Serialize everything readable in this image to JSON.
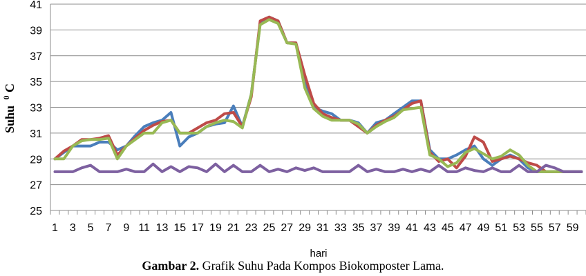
{
  "caption": {
    "lead": "Gambar 2.",
    "text": " Grafik Suhu Pada Kompos Biokomposter Lama."
  },
  "chart_data": {
    "type": "line",
    "title": "",
    "xlabel": "hari",
    "ylabel": "Suhu",
    "ylabel_superscript": "0",
    "ylabel_unit": "C",
    "ylim": [
      25,
      41
    ],
    "yticks": [
      25,
      27,
      29,
      31,
      33,
      35,
      37,
      39,
      41
    ],
    "xticks": [
      1,
      3,
      5,
      7,
      9,
      11,
      13,
      15,
      17,
      19,
      21,
      23,
      25,
      27,
      29,
      31,
      33,
      35,
      37,
      39,
      41,
      43,
      45,
      47,
      49,
      51,
      53,
      55,
      57,
      59
    ],
    "grid": "horizontal",
    "legend": "none",
    "x": [
      1,
      2,
      3,
      4,
      5,
      6,
      7,
      8,
      9,
      10,
      11,
      12,
      13,
      14,
      15,
      16,
      17,
      18,
      19,
      20,
      21,
      22,
      23,
      24,
      25,
      26,
      27,
      28,
      29,
      30,
      31,
      32,
      33,
      34,
      35,
      36,
      37,
      38,
      39,
      40,
      41,
      42,
      43,
      44,
      45,
      46,
      47,
      48,
      49,
      50,
      51,
      52,
      53,
      54,
      55,
      56,
      57,
      58,
      59,
      60
    ],
    "series": [
      {
        "color": "#4a7ebb",
        "values": [
          29.0,
          29.5,
          30.0,
          30.0,
          30.0,
          30.3,
          30.3,
          29.7,
          30.0,
          30.8,
          31.5,
          31.8,
          32.0,
          32.6,
          30.0,
          30.7,
          31.0,
          31.5,
          31.7,
          31.8,
          33.1,
          31.5,
          34.0,
          39.5,
          40.0,
          39.7,
          38.0,
          38.0,
          35.0,
          33.0,
          32.7,
          32.5,
          32.0,
          32.0,
          31.8,
          31.0,
          31.8,
          32.0,
          32.5,
          33.0,
          33.5,
          33.5,
          29.7,
          29.0,
          29.0,
          29.3,
          29.7,
          30.0,
          29.0,
          28.5,
          29.0,
          29.3,
          29.0,
          28.3,
          28.0,
          28.0,
          28.0,
          28.0,
          28.0,
          28.0
        ]
      },
      {
        "color": "#be4b48",
        "values": [
          29.0,
          29.6,
          30.0,
          30.5,
          30.5,
          30.6,
          30.8,
          29.3,
          30.0,
          30.6,
          31.2,
          31.6,
          31.9,
          32.0,
          31.0,
          31.0,
          31.4,
          31.8,
          32.0,
          32.5,
          32.6,
          31.5,
          33.8,
          39.7,
          40.0,
          39.7,
          38.0,
          38.0,
          35.5,
          33.3,
          32.5,
          32.2,
          32.0,
          32.0,
          31.5,
          31.0,
          31.6,
          32.0,
          32.3,
          32.8,
          33.3,
          33.5,
          29.5,
          28.8,
          29.0,
          28.3,
          29.2,
          30.7,
          30.3,
          28.8,
          29.0,
          29.2,
          29.0,
          28.7,
          28.5,
          28.0,
          28.0,
          28.0,
          28.0,
          28.0
        ]
      },
      {
        "color": "#98b954",
        "values": [
          29.0,
          29.0,
          30.0,
          30.4,
          30.5,
          30.5,
          30.6,
          29.0,
          30.0,
          30.5,
          31.0,
          31.0,
          31.8,
          32.0,
          31.0,
          31.0,
          31.0,
          31.5,
          31.8,
          32.0,
          31.9,
          31.4,
          34.0,
          39.4,
          39.8,
          39.5,
          38.0,
          37.9,
          34.5,
          32.9,
          32.3,
          32.0,
          32.0,
          32.0,
          31.7,
          31.0,
          31.5,
          31.9,
          32.2,
          32.8,
          32.9,
          33.0,
          29.3,
          29.0,
          28.4,
          28.7,
          29.5,
          29.8,
          29.4,
          29.0,
          29.2,
          29.7,
          29.3,
          28.5,
          28.0,
          28.0,
          28.0,
          28.0,
          28.0,
          28.0
        ]
      },
      {
        "color": "#7d60a0",
        "values": [
          28.0,
          28.0,
          28.0,
          28.3,
          28.5,
          28.0,
          28.0,
          28.0,
          28.2,
          28.0,
          28.0,
          28.6,
          28.0,
          28.4,
          28.0,
          28.4,
          28.3,
          28.0,
          28.6,
          28.0,
          28.5,
          28.0,
          28.0,
          28.5,
          28.0,
          28.2,
          28.0,
          28.3,
          28.1,
          28.3,
          28.0,
          28.0,
          28.0,
          28.0,
          28.5,
          28.0,
          28.2,
          28.0,
          28.0,
          28.2,
          28.0,
          28.2,
          28.0,
          28.5,
          28.0,
          28.0,
          28.3,
          28.1,
          28.0,
          28.3,
          28.0,
          28.0,
          28.5,
          28.0,
          28.0,
          28.5,
          28.3,
          28.0,
          28.0,
          28.0
        ]
      }
    ]
  }
}
